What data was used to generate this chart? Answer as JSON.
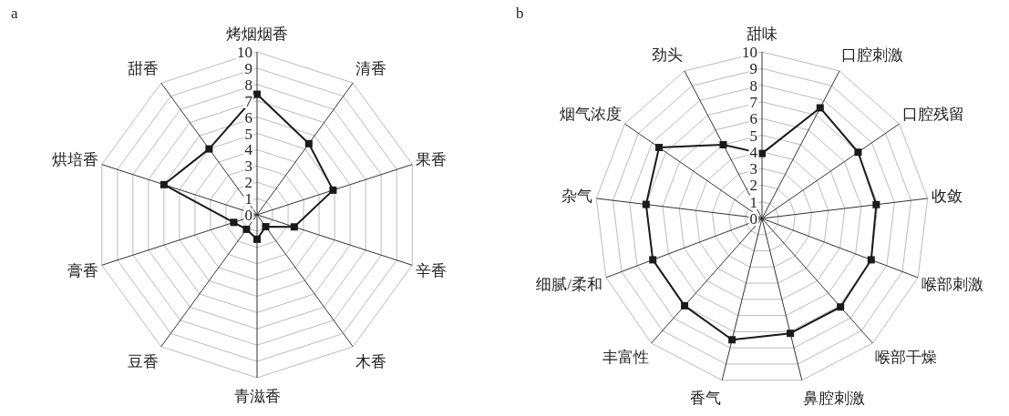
{
  "chart_data": [
    {
      "type": "radar",
      "title": "a",
      "categories": [
        "烤烟烟香",
        "清香",
        "果香",
        "辛香",
        "木香",
        "青滋香",
        "豆香",
        "膏香",
        "烘培香",
        "甜香"
      ],
      "ylim": [
        0,
        10
      ],
      "yticks": [
        0,
        1,
        2,
        3,
        4,
        5,
        6,
        7,
        8,
        9,
        10
      ],
      "marker": "square",
      "grid": true,
      "series": [
        {
          "color": "#1a1a1a",
          "values": [
            7.4,
            5.4,
            4.9,
            2.4,
            0.9,
            1.5,
            1.1,
            1.5,
            6.0,
            5.0
          ]
        }
      ]
    },
    {
      "type": "radar",
      "title": "b",
      "categories": [
        "甜味",
        "口腔刺激",
        "口腔残留",
        "收敛",
        "喉部刺激",
        "喉部干燥",
        "鼻腔刺激",
        "香气",
        "丰富性",
        "细腻/柔和",
        "杂气",
        "烟气浓度",
        "劲头"
      ],
      "ylim": [
        0,
        10
      ],
      "yticks": [
        0,
        1,
        2,
        3,
        4,
        5,
        6,
        7,
        8,
        9,
        10
      ],
      "marker": "square",
      "grid": true,
      "series": [
        {
          "color": "#1a1a1a",
          "values": [
            3.9,
            7.5,
            7.0,
            6.9,
            7.0,
            7.1,
            7.1,
            7.5,
            7.0,
            7.0,
            7.0,
            7.5,
            5.0
          ]
        }
      ]
    }
  ]
}
